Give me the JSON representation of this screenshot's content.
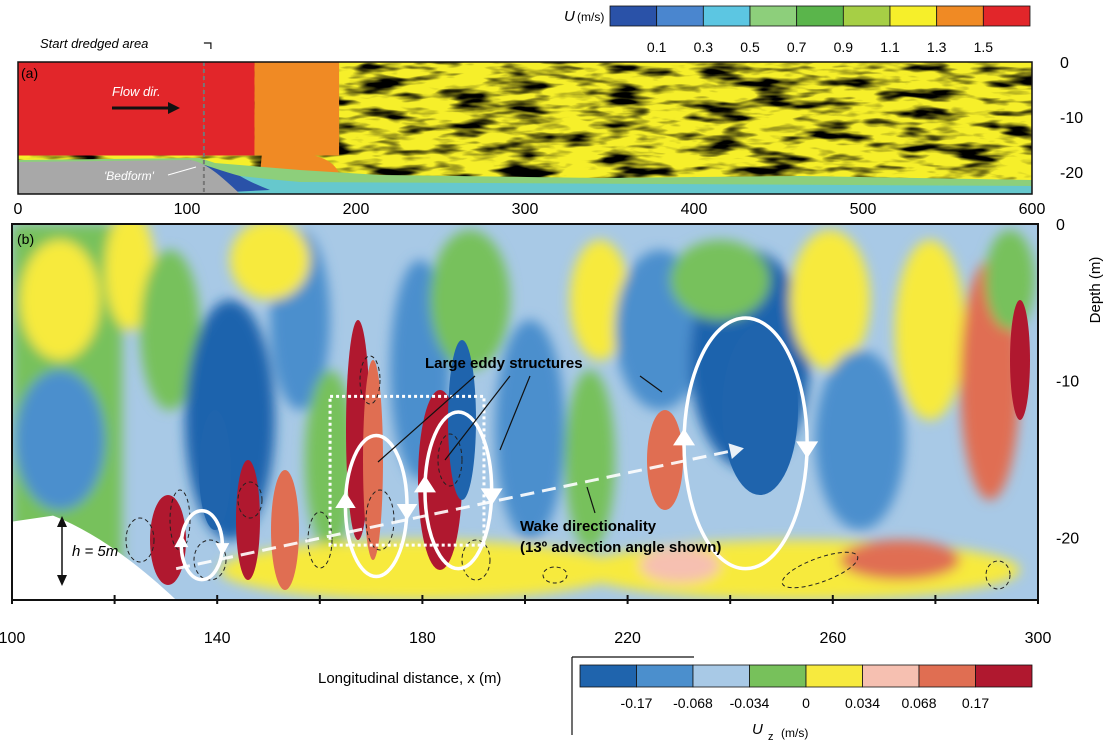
{
  "chart_data": [
    {
      "type": "heatmap",
      "panel_label": "(a)",
      "variable_symbol": "U",
      "variable_unit": "(m/s)",
      "colorbar": {
        "ticks": [
          "0.1",
          "0.3",
          "0.5",
          "0.7",
          "0.9",
          "1.1",
          "1.3",
          "1.5"
        ],
        "colors": [
          "#2a52a8",
          "#4a86cf",
          "#5cc6e2",
          "#8dcf7b",
          "#5ab54b",
          "#a6cf45",
          "#f6ef2a",
          "#f08a24",
          "#e2262a"
        ]
      },
      "xlim": [
        0,
        600
      ],
      "x_ticks": [
        "0",
        "100",
        "200",
        "300",
        "400",
        "500",
        "600"
      ],
      "ylim": [
        -24,
        0
      ],
      "y_ticks": [
        "0",
        "-10",
        "-20"
      ],
      "ylabel": "Depth (m)",
      "annotations": {
        "start_dredged": "Start dredged area",
        "flow": "Flow dir.",
        "bedform": "'Bedform'"
      },
      "dredged_area_start_x": 110,
      "velocity_by_region": [
        {
          "x": [
            0,
            110
          ],
          "value": 1.5
        },
        {
          "x": [
            110,
            140
          ],
          "value": 1.5
        },
        {
          "x": [
            140,
            190
          ],
          "value": 1.3
        },
        {
          "x": [
            190,
            600
          ],
          "value": 1.2
        }
      ]
    },
    {
      "type": "heatmap",
      "panel_label": "(b)",
      "variable_symbol": "U",
      "variable_subscript": "z",
      "variable_unit": "(m/s)",
      "colorbar": {
        "ticks": [
          "-0.17",
          "-0.068",
          "-0.034",
          "0",
          "0.034",
          "0.068",
          "0.17"
        ],
        "colors": [
          "#1f64ad",
          "#4b8fcd",
          "#a8c9e6",
          "#77c15b",
          "#f7ea3e",
          "#f6c0b1",
          "#e06e52",
          "#b0182f"
        ]
      },
      "xlim": [
        100,
        300
      ],
      "x_ticks": [
        "100",
        "140",
        "180",
        "220",
        "260",
        "300"
      ],
      "ylim": [
        -24,
        0
      ],
      "y_ticks": [
        "0",
        "-10",
        "-20"
      ],
      "xlabel": "Longitudinal distance, x (m)",
      "annotations": {
        "eddy": "Large eddy structures",
        "wake1": "Wake directionality",
        "wake2": "(13º advection angle shown)",
        "height": "h = 5m"
      },
      "advection_angle_deg": 13,
      "bedform_height_m": 5,
      "eddies": [
        {
          "x": 137,
          "y": -20.5,
          "rx": 4,
          "ry": 2.2
        },
        {
          "x": 171,
          "y": -18,
          "rx": 6,
          "ry": 4.5
        },
        {
          "x": 187,
          "y": -17,
          "rx": 6.5,
          "ry": 5
        },
        {
          "x": 243,
          "y": -14,
          "rx": 12,
          "ry": 8
        }
      ],
      "wake_line": {
        "x": [
          132,
          240
        ],
        "y": [
          -22,
          -14.5
        ]
      },
      "highlight_box": {
        "x": [
          162,
          192
        ],
        "y": [
          -11,
          -20.5
        ]
      }
    }
  ]
}
